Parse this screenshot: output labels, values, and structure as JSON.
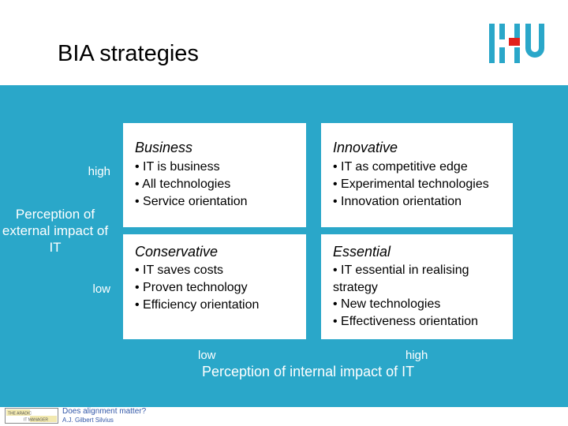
{
  "slide": {
    "title": "BIA strategies"
  },
  "y_axis": {
    "high": "high",
    "label": "Perception of external impact of IT",
    "low": "low"
  },
  "x_axis": {
    "low": "low",
    "high": "high",
    "label": "Perception of internal impact of IT"
  },
  "quadrants": [
    {
      "name": "Business",
      "items": [
        "• IT is business",
        "• All technologies",
        "• Service orientation"
      ]
    },
    {
      "name": "Innovative",
      "items": [
        "• IT as competitive edge",
        "• Experimental technologies",
        "• Innovation orientation"
      ]
    },
    {
      "name": "Conservative",
      "items": [
        "• IT saves costs",
        "• Proven technology",
        "• Efficiency orientation"
      ]
    },
    {
      "name": "Essential",
      "items": [
        "• IT essential in realising",
        "strategy",
        "• New technologies",
        "• Effectiveness orientation"
      ]
    }
  ],
  "footer": {
    "text": "Does alignment matter?",
    "author": "A.J. Gilbert Silvius",
    "logo_top": "THE ARADIC",
    "logo_bottom": "IT MANAGER"
  },
  "colors": {
    "panel": "#2aa7c9",
    "logo": "#2aa7c9",
    "footer_text": "#3358a8"
  },
  "icons": {
    "logo": "hu-logo-icon",
    "footer_logo": "it-manager-logo-icon"
  }
}
